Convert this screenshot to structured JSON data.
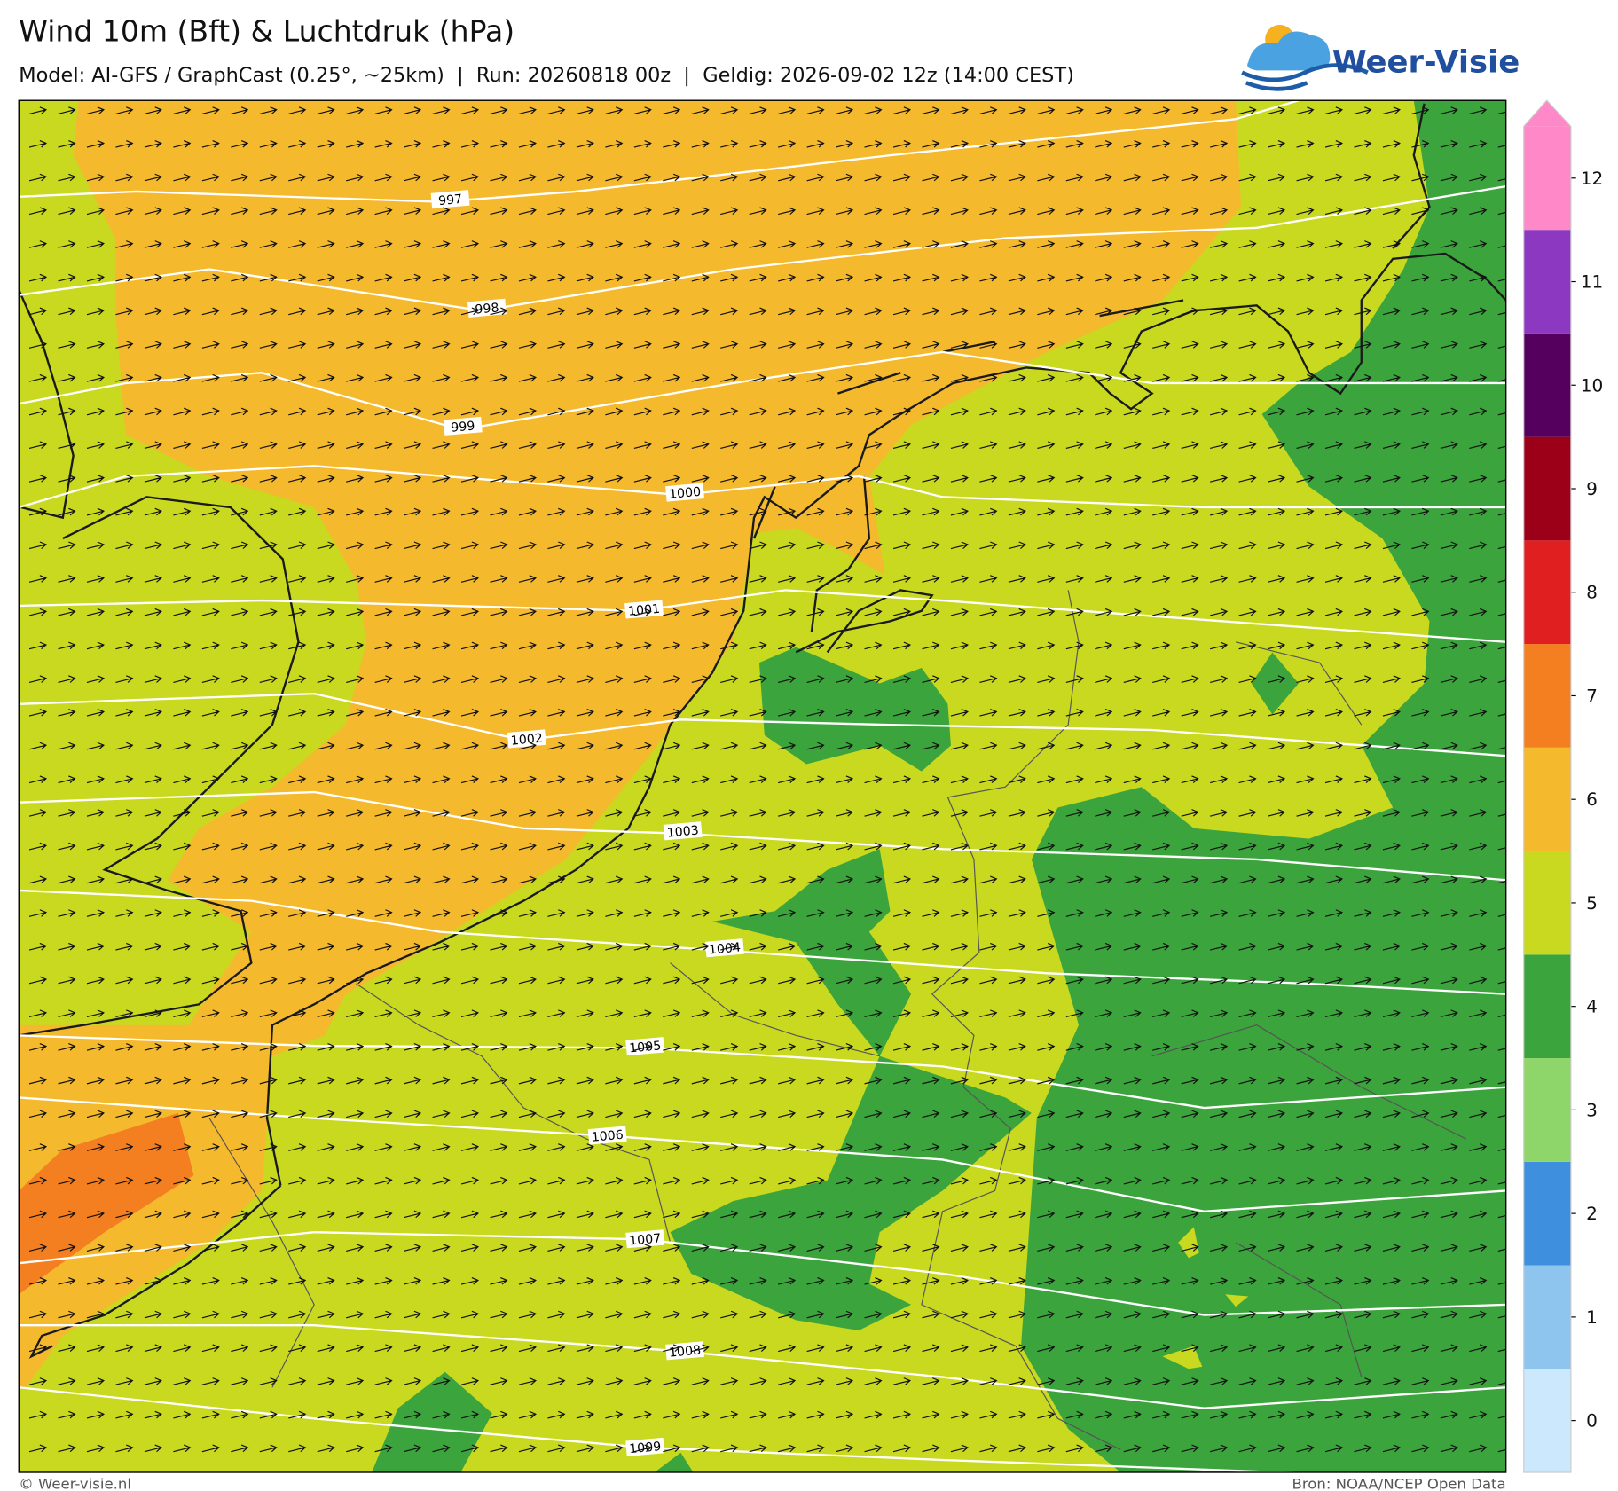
{
  "header": {
    "title": "Wind 10m (Bft) & Luchtdruk (hPa)",
    "subtitle": "Model: AI-GFS / GraphCast (0.25°, ~25km)  |  Run: 20260818 00z  |  Geldig: 2026-09-02 12z (14:00 CEST)",
    "logo": "Weer-Visie"
  },
  "isobars": [
    {
      "label": "997"
    },
    {
      "label": "998"
    },
    {
      "label": "999"
    },
    {
      "label": "1000"
    },
    {
      "label": "1001"
    },
    {
      "label": "1002"
    },
    {
      "label": "1003"
    },
    {
      "label": "1004"
    },
    {
      "label": "1005"
    },
    {
      "label": "1006"
    },
    {
      "label": "1007"
    },
    {
      "label": "1008"
    },
    {
      "label": "1009"
    }
  ],
  "colorbar": [
    {
      "label": "0",
      "color": "#cce8fc"
    },
    {
      "label": "1",
      "color": "#8ec5ee"
    },
    {
      "label": "2",
      "color": "#3f8fdf"
    },
    {
      "label": "3",
      "color": "#8fd66a"
    },
    {
      "label": "4",
      "color": "#3ca43c"
    },
    {
      "label": "5",
      "color": "#c8d920"
    },
    {
      "label": "6",
      "color": "#f5b92e"
    },
    {
      "label": "7",
      "color": "#f47f20"
    },
    {
      "label": "8",
      "color": "#e02020"
    },
    {
      "label": "9",
      "color": "#9c0018"
    },
    {
      "label": "10",
      "color": "#55005f"
    },
    {
      "label": "11",
      "color": "#8c38c0"
    },
    {
      "label": "12",
      "color": "#ff88c8"
    }
  ],
  "footer": {
    "left": "© Weer-visie.nl",
    "right": "Bron: NOAA/NCEP Open Data"
  }
}
